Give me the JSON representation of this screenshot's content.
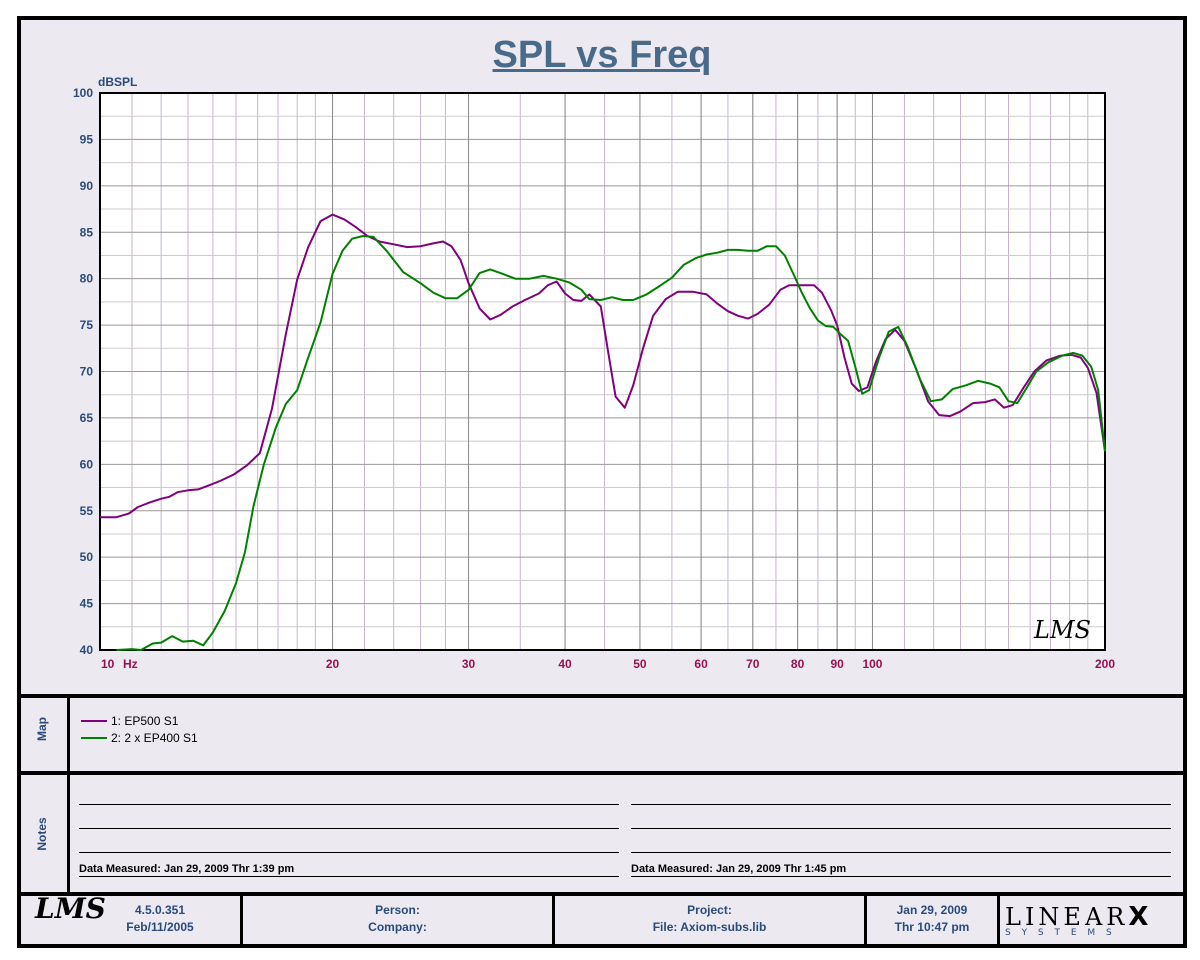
{
  "title": "SPL vs Freq",
  "chart_data": {
    "type": "line",
    "title": "SPL vs Freq",
    "ylabel": "dBSPL",
    "xlabel": "Hz",
    "x_scale": "log",
    "xlim": [
      10,
      200
    ],
    "ylim": [
      40,
      100
    ],
    "y_ticks": [
      40,
      45,
      50,
      55,
      60,
      65,
      70,
      75,
      80,
      85,
      90,
      95,
      100
    ],
    "x_ticks": [
      10,
      20,
      30,
      40,
      50,
      60,
      70,
      80,
      90,
      100,
      200
    ],
    "x_tick_labels": [
      "10",
      "20",
      "30",
      "40",
      "50",
      "60",
      "70",
      "80",
      "90",
      "100",
      "200"
    ],
    "grid": true,
    "series": [
      {
        "name": "1: EP500 S1",
        "color": "#800080",
        "points": [
          [
            10,
            54.3
          ],
          [
            10.5,
            54.3
          ],
          [
            10.9,
            54.7
          ],
          [
            11.2,
            55.4
          ],
          [
            11.6,
            55.9
          ],
          [
            12,
            56.3
          ],
          [
            12.3,
            56.5
          ],
          [
            12.6,
            57
          ],
          [
            13,
            57.2
          ],
          [
            13.4,
            57.3
          ],
          [
            13.8,
            57.7
          ],
          [
            14.3,
            58.2
          ],
          [
            14.9,
            58.9
          ],
          [
            15.5,
            59.9
          ],
          [
            16.1,
            61.2
          ],
          [
            16.7,
            66
          ],
          [
            17.4,
            74
          ],
          [
            18,
            79.9
          ],
          [
            18.6,
            83.4
          ],
          [
            19.3,
            86.2
          ],
          [
            20,
            86.9
          ],
          [
            20.7,
            86.4
          ],
          [
            21.4,
            85.6
          ],
          [
            22.2,
            84.6
          ],
          [
            23,
            84
          ],
          [
            24,
            83.7
          ],
          [
            25,
            83.4
          ],
          [
            26,
            83.5
          ],
          [
            27,
            83.8
          ],
          [
            27.8,
            84
          ],
          [
            28.5,
            83.5
          ],
          [
            29.3,
            82
          ],
          [
            30,
            79.5
          ],
          [
            31,
            76.8
          ],
          [
            32,
            75.6
          ],
          [
            33,
            76.1
          ],
          [
            34.2,
            77
          ],
          [
            35.5,
            77.7
          ],
          [
            37,
            78.4
          ],
          [
            38,
            79.3
          ],
          [
            39,
            79.7
          ],
          [
            40,
            78.4
          ],
          [
            41,
            77.7
          ],
          [
            42,
            77.6
          ],
          [
            43,
            78.3
          ],
          [
            44.5,
            77
          ],
          [
            45.5,
            72
          ],
          [
            46.5,
            67.3
          ],
          [
            47.8,
            66.1
          ],
          [
            49,
            68.5
          ],
          [
            50.5,
            72.6
          ],
          [
            52,
            76
          ],
          [
            54,
            77.8
          ],
          [
            56,
            78.6
          ],
          [
            58.5,
            78.6
          ],
          [
            61,
            78.3
          ],
          [
            63,
            77.3
          ],
          [
            65,
            76.5
          ],
          [
            67,
            76
          ],
          [
            69,
            75.7
          ],
          [
            71,
            76.2
          ],
          [
            73.5,
            77.2
          ],
          [
            76,
            78.8
          ],
          [
            78,
            79.3
          ],
          [
            81,
            79.3
          ],
          [
            84,
            79.3
          ],
          [
            86,
            78.5
          ],
          [
            88.5,
            76.5
          ],
          [
            90,
            75
          ],
          [
            92,
            71.5
          ],
          [
            94,
            68.7
          ],
          [
            96,
            67.9
          ],
          [
            98.5,
            68.3
          ],
          [
            101,
            71
          ],
          [
            104,
            73.5
          ],
          [
            107,
            74.5
          ],
          [
            110,
            73.3
          ],
          [
            114,
            70.2
          ],
          [
            118,
            66.8
          ],
          [
            122,
            65.3
          ],
          [
            126,
            65.2
          ],
          [
            130,
            65.7
          ],
          [
            135,
            66.6
          ],
          [
            140,
            66.7
          ],
          [
            144,
            67
          ],
          [
            148,
            66.1
          ],
          [
            152,
            66.4
          ],
          [
            157,
            68.3
          ],
          [
            162,
            70
          ],
          [
            168,
            71.2
          ],
          [
            175,
            71.7
          ],
          [
            181,
            71.8
          ],
          [
            186,
            71.5
          ],
          [
            190,
            70.4
          ],
          [
            195,
            67.7
          ],
          [
            200,
            61.4
          ]
        ]
      },
      {
        "name": "2: 2 x EP400 S1",
        "color": "#008000",
        "points": [
          [
            10.5,
            40
          ],
          [
            11,
            40.1
          ],
          [
            11.3,
            40
          ],
          [
            11.7,
            40.7
          ],
          [
            12,
            40.8
          ],
          [
            12.4,
            41.5
          ],
          [
            12.8,
            40.9
          ],
          [
            13.2,
            41
          ],
          [
            13.6,
            40.5
          ],
          [
            14,
            41.9
          ],
          [
            14.5,
            44.2
          ],
          [
            15,
            47.2
          ],
          [
            15.4,
            50.5
          ],
          [
            15.8,
            55.5
          ],
          [
            16.3,
            60
          ],
          [
            16.9,
            64
          ],
          [
            17.4,
            66.5
          ],
          [
            18,
            68
          ],
          [
            18.6,
            71.5
          ],
          [
            19.3,
            75.3
          ],
          [
            20,
            80.5
          ],
          [
            20.6,
            83
          ],
          [
            21.2,
            84.3
          ],
          [
            21.9,
            84.6
          ],
          [
            22.6,
            84.5
          ],
          [
            23.5,
            83
          ],
          [
            24.7,
            80.7
          ],
          [
            26,
            79.5
          ],
          [
            27,
            78.5
          ],
          [
            28,
            77.9
          ],
          [
            29,
            77.9
          ],
          [
            30,
            78.8
          ],
          [
            31,
            80.6
          ],
          [
            32,
            81
          ],
          [
            33,
            80.6
          ],
          [
            34.5,
            80
          ],
          [
            36,
            80
          ],
          [
            37.5,
            80.3
          ],
          [
            39,
            80
          ],
          [
            40.5,
            79.6
          ],
          [
            42,
            78.8
          ],
          [
            43,
            77.8
          ],
          [
            44.5,
            77.7
          ],
          [
            46,
            78
          ],
          [
            47.5,
            77.7
          ],
          [
            49,
            77.7
          ],
          [
            51,
            78.3
          ],
          [
            53,
            79.2
          ],
          [
            55,
            80.1
          ],
          [
            57,
            81.5
          ],
          [
            59,
            82.2
          ],
          [
            61,
            82.6
          ],
          [
            63,
            82.8
          ],
          [
            65,
            83.1
          ],
          [
            67,
            83.1
          ],
          [
            69,
            83
          ],
          [
            71,
            83
          ],
          [
            73,
            83.5
          ],
          [
            75,
            83.5
          ],
          [
            77,
            82.5
          ],
          [
            79,
            80.5
          ],
          [
            81,
            78.5
          ],
          [
            83,
            76.8
          ],
          [
            85,
            75.5
          ],
          [
            87,
            74.9
          ],
          [
            89,
            74.8
          ],
          [
            91,
            74
          ],
          [
            93,
            73.3
          ],
          [
            95,
            70.5
          ],
          [
            97,
            67.6
          ],
          [
            99,
            68
          ],
          [
            102,
            71.5
          ],
          [
            105,
            74.3
          ],
          [
            108,
            74.8
          ],
          [
            111,
            72.7
          ],
          [
            115,
            69.3
          ],
          [
            119,
            66.8
          ],
          [
            123,
            67
          ],
          [
            127,
            68.1
          ],
          [
            132,
            68.5
          ],
          [
            137,
            69
          ],
          [
            142,
            68.7
          ],
          [
            146,
            68.3
          ],
          [
            150,
            66.8
          ],
          [
            154,
            66.6
          ],
          [
            158,
            68.1
          ],
          [
            163,
            70
          ],
          [
            169,
            71
          ],
          [
            176,
            71.7
          ],
          [
            182,
            72
          ],
          [
            187,
            71.7
          ],
          [
            192,
            70.5
          ],
          [
            196,
            68
          ],
          [
            200,
            61.4
          ]
        ]
      }
    ]
  },
  "watermark": "LMS",
  "map": {
    "label": "Map",
    "items": [
      {
        "label": "1: EP500 S1",
        "color": "#800080"
      },
      {
        "label": "2: 2 x EP400 S1",
        "color": "#008000"
      }
    ]
  },
  "notes": {
    "label": "Notes",
    "left": "Data Measured: Jan 29, 2009  Thr  1:39 pm",
    "right": "Data Measured: Jan 29, 2009  Thr  1:45 pm"
  },
  "footer": {
    "logo": "LMS",
    "version": "4.5.0.351",
    "version_date": "Feb/11/2005",
    "person": "Person:",
    "company": "Company:",
    "project": "Project:",
    "file": "File: Axiom-subs.lib",
    "date": "Jan 29, 2009",
    "time": "Thr 10:47 pm",
    "brand_top": "LINEAR",
    "brand_x": "X",
    "brand_bottom": "S Y S T E M S"
  }
}
